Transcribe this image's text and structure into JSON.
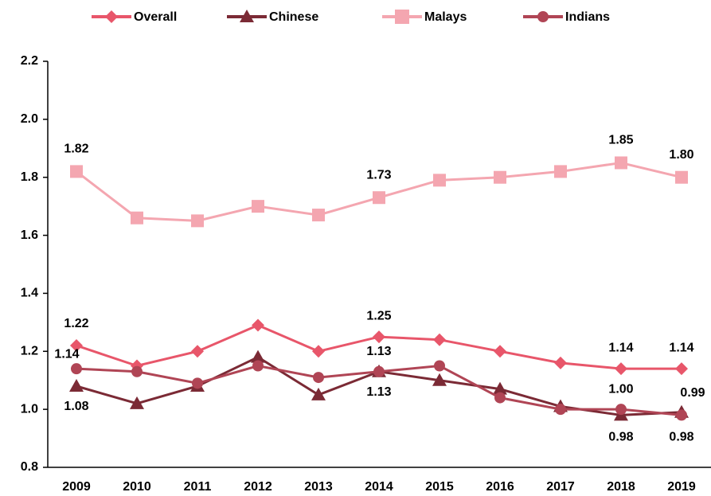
{
  "chart_data": {
    "type": "line",
    "categories": [
      "2009",
      "2010",
      "2011",
      "2012",
      "2013",
      "2014",
      "2015",
      "2016",
      "2017",
      "2018",
      "2019"
    ],
    "ylim": [
      0.8,
      2.2
    ],
    "yticks": [
      {
        "value": 0.8,
        "label": "0.8"
      },
      {
        "value": 1.0,
        "label": "1.0"
      },
      {
        "value": 1.2,
        "label": "1.2"
      },
      {
        "value": 1.4,
        "label": "1.4"
      },
      {
        "value": 1.6,
        "label": "1.6"
      },
      {
        "value": 1.8,
        "label": "1.8"
      },
      {
        "value": 2.0,
        "label": "2.0"
      },
      {
        "value": 2.2,
        "label": "2.2"
      }
    ],
    "legend": "top",
    "series": [
      {
        "name": "Overall",
        "color": "#e8566a",
        "marker": "diamond",
        "values": [
          1.22,
          1.15,
          1.2,
          1.29,
          1.2,
          1.25,
          1.24,
          1.2,
          1.16,
          1.14,
          1.14
        ],
        "value_labels": [
          "1.22",
          null,
          null,
          null,
          null,
          "1.25",
          null,
          null,
          null,
          "1.14",
          "1.14"
        ]
      },
      {
        "name": "Chinese",
        "color": "#7b2a35",
        "marker": "triangle",
        "values": [
          1.08,
          1.02,
          1.08,
          1.18,
          1.05,
          1.13,
          1.1,
          1.07,
          1.01,
          0.98,
          0.99
        ],
        "value_labels": [
          "1.08",
          null,
          null,
          null,
          null,
          "1.13",
          null,
          null,
          null,
          "0.98",
          "0.99"
        ]
      },
      {
        "name": "Malays",
        "color": "#f4a6b0",
        "marker": "square",
        "values": [
          1.82,
          1.66,
          1.65,
          1.7,
          1.67,
          1.73,
          1.79,
          1.8,
          1.82,
          1.85,
          1.8
        ],
        "value_labels": [
          "1.82",
          null,
          null,
          null,
          null,
          "1.73",
          null,
          null,
          null,
          "1.85",
          "1.80"
        ]
      },
      {
        "name": "Indians",
        "color": "#b04555",
        "marker": "circle",
        "values": [
          1.14,
          1.13,
          1.09,
          1.15,
          1.11,
          1.13,
          1.15,
          1.04,
          1.0,
          1.0,
          0.98
        ],
        "value_labels": [
          "1.14",
          null,
          null,
          null,
          null,
          "1.13",
          null,
          null,
          null,
          "1.00",
          "0.98"
        ]
      }
    ]
  }
}
